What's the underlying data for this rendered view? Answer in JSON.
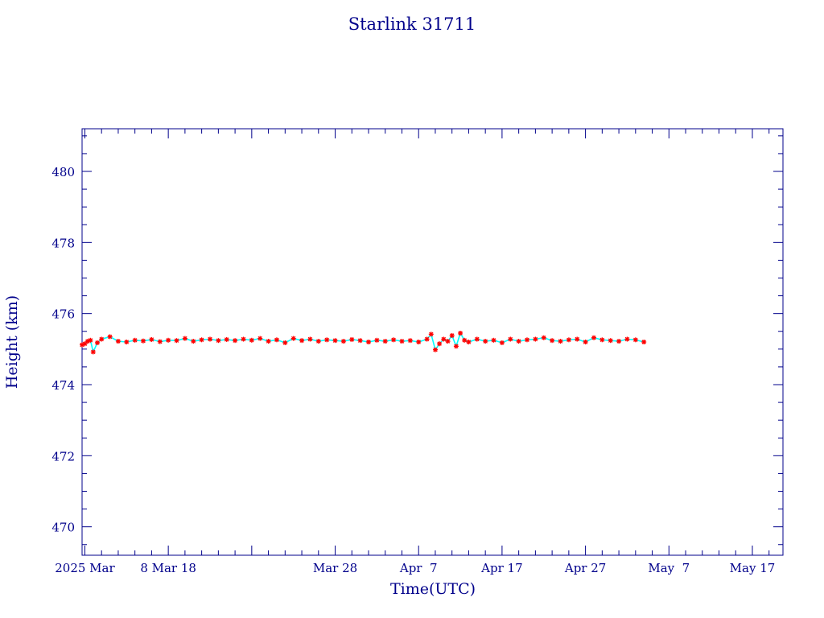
{
  "chart_data": {
    "type": "line",
    "title": "Starlink 31711",
    "xlabel": "Time(UTC)",
    "ylabel": "Height (km)",
    "x_unit": "date (UTC)",
    "xlim": [
      "2025-02-25T16:00",
      "2025-05-20T16:00"
    ],
    "ylim": [
      469.2,
      481.2
    ],
    "x_ticks": [
      {
        "date": "2025-02-26",
        "label": "2025 Mar"
      },
      {
        "date": "2025-03-08",
        "label": "8 Mar 18"
      },
      {
        "date": "2025-03-18",
        "label": ""
      },
      {
        "date": "2025-03-28",
        "label": "Mar 28"
      },
      {
        "date": "2025-04-07",
        "label": "Apr  7"
      },
      {
        "date": "2025-04-17",
        "label": "Apr 17"
      },
      {
        "date": "2025-04-27",
        "label": "Apr 27"
      },
      {
        "date": "2025-05-07",
        "label": "May  7"
      },
      {
        "date": "2025-05-17",
        "label": "May 17"
      }
    ],
    "y_ticks": [
      470,
      472,
      474,
      476,
      478,
      480
    ],
    "grid": false,
    "colors": {
      "text": "#00008b",
      "axes": "#00008b",
      "line": "#00ffff",
      "markers": "#ff0000"
    },
    "series": [
      {
        "marker": "asterisk",
        "x": [
          "2025-02-25T16:00",
          "2025-02-26T00:00",
          "2025-02-26T08:00",
          "2025-02-26T16:00",
          "2025-02-27T00:00",
          "2025-02-27T12:00",
          "2025-02-28T00:00",
          "2025-03-01T00:00",
          "2025-03-02T00:00",
          "2025-03-03T00:00",
          "2025-03-04T00:00",
          "2025-03-05T00:00",
          "2025-03-06T00:00",
          "2025-03-07T00:00",
          "2025-03-08T00:00",
          "2025-03-09T00:00",
          "2025-03-10T00:00",
          "2025-03-11T00:00",
          "2025-03-12T00:00",
          "2025-03-13T00:00",
          "2025-03-14T00:00",
          "2025-03-15T00:00",
          "2025-03-16T00:00",
          "2025-03-17T00:00",
          "2025-03-18T00:00",
          "2025-03-19T00:00",
          "2025-03-20T00:00",
          "2025-03-21T00:00",
          "2025-03-22T00:00",
          "2025-03-23T00:00",
          "2025-03-24T00:00",
          "2025-03-25T00:00",
          "2025-03-26T00:00",
          "2025-03-27T00:00",
          "2025-03-28T00:00",
          "2025-03-29T00:00",
          "2025-03-30T00:00",
          "2025-03-31T00:00",
          "2025-04-01T00:00",
          "2025-04-02T00:00",
          "2025-04-03T00:00",
          "2025-04-04T00:00",
          "2025-04-05T00:00",
          "2025-04-06T00:00",
          "2025-04-07T00:00",
          "2025-04-08T00:00",
          "2025-04-08T12:00",
          "2025-04-09T00:00",
          "2025-04-09T12:00",
          "2025-04-10T00:00",
          "2025-04-10T12:00",
          "2025-04-11T00:00",
          "2025-04-11T12:00",
          "2025-04-12T00:00",
          "2025-04-12T12:00",
          "2025-04-13T00:00",
          "2025-04-14T00:00",
          "2025-04-15T00:00",
          "2025-04-16T00:00",
          "2025-04-17T00:00",
          "2025-04-18T00:00",
          "2025-04-19T00:00",
          "2025-04-20T00:00",
          "2025-04-21T00:00",
          "2025-04-22T00:00",
          "2025-04-23T00:00",
          "2025-04-24T00:00",
          "2025-04-25T00:00",
          "2025-04-26T00:00",
          "2025-04-27T00:00",
          "2025-04-28T00:00",
          "2025-04-29T00:00",
          "2025-04-30T00:00",
          "2025-05-01T00:00",
          "2025-05-02T00:00",
          "2025-05-03T00:00",
          "2025-05-04T00:00"
        ],
        "y": [
          475.12,
          475.15,
          475.22,
          475.25,
          474.92,
          475.18,
          475.28,
          475.35,
          475.22,
          475.2,
          475.25,
          475.23,
          475.27,
          475.21,
          475.25,
          475.24,
          475.3,
          475.22,
          475.26,
          475.28,
          475.24,
          475.27,
          475.24,
          475.28,
          475.25,
          475.3,
          475.22,
          475.26,
          475.18,
          475.3,
          475.24,
          475.28,
          475.22,
          475.26,
          475.24,
          475.22,
          475.27,
          475.24,
          475.2,
          475.25,
          475.22,
          475.26,
          475.22,
          475.24,
          475.2,
          475.28,
          475.42,
          474.98,
          475.15,
          475.28,
          475.22,
          475.38,
          475.08,
          475.45,
          475.25,
          475.2,
          475.28,
          475.22,
          475.25,
          475.18,
          475.28,
          475.22,
          475.26,
          475.28,
          475.32,
          475.24,
          475.22,
          475.26,
          475.28,
          475.2,
          475.32,
          475.26,
          475.24,
          475.22,
          475.28,
          475.26,
          475.2
        ]
      }
    ]
  }
}
